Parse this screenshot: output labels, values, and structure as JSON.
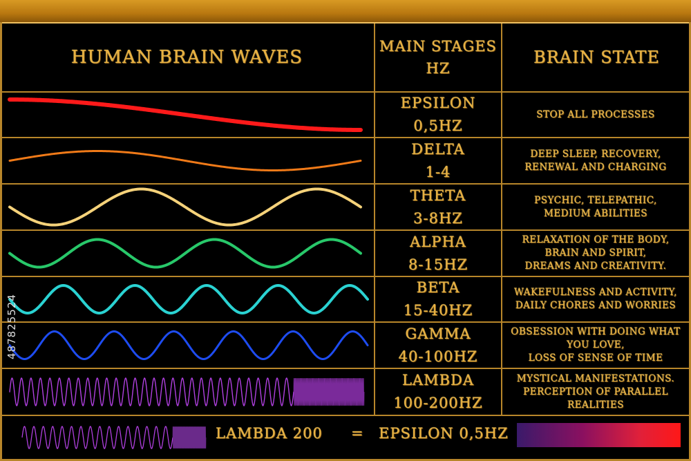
{
  "header": {
    "title": "Human brain waves",
    "col2": [
      "Main stages",
      "Hz"
    ],
    "col3": "Brain state"
  },
  "rows": [
    {
      "stage": "Epsilon",
      "hz": "0,5Hz",
      "state": [
        "Stop all processes"
      ],
      "color": "#ff1a1a",
      "cycles": 0.5
    },
    {
      "stage": "Delta",
      "hz": "1-4",
      "state": [
        "Deep sleep, recovery,",
        "renewal and charging"
      ],
      "color": "#f07a18",
      "cycles": 1
    },
    {
      "stage": "Theta",
      "hz": "3-8Hz",
      "state": [
        "psychic, telepathic,",
        "medium abilities"
      ],
      "color": "#f5d27a",
      "cycles": 2
    },
    {
      "stage": "Alpha",
      "hz": "8-15Hz",
      "state": [
        "relaxation of the body,",
        "brain and spirit,",
        "dreams and creativity."
      ],
      "color": "#28c86a",
      "cycles": 3
    },
    {
      "stage": "Beta",
      "hz": "15-40Hz",
      "state": [
        "wakefulness and activity,",
        "daily chores and worries"
      ],
      "color": "#2ad2d2",
      "cycles": 5
    },
    {
      "stage": "Gamma",
      "hz": "40-100Hz",
      "state": [
        "obsession with doing what",
        "you love,",
        "loss of sense of time"
      ],
      "color": "#1e4cf0",
      "cycles": 6
    },
    {
      "stage": "Lambda",
      "hz": "100-200Hz",
      "state": [
        "mystical manifestations.",
        "perception of parallel",
        "realities"
      ],
      "color": "#b040e0",
      "cycles": 30
    }
  ],
  "footer": {
    "left": "Lambda 200",
    "eq": "=",
    "right": "Epsilon 0,5Hz"
  },
  "watermark_id": "487825524"
}
